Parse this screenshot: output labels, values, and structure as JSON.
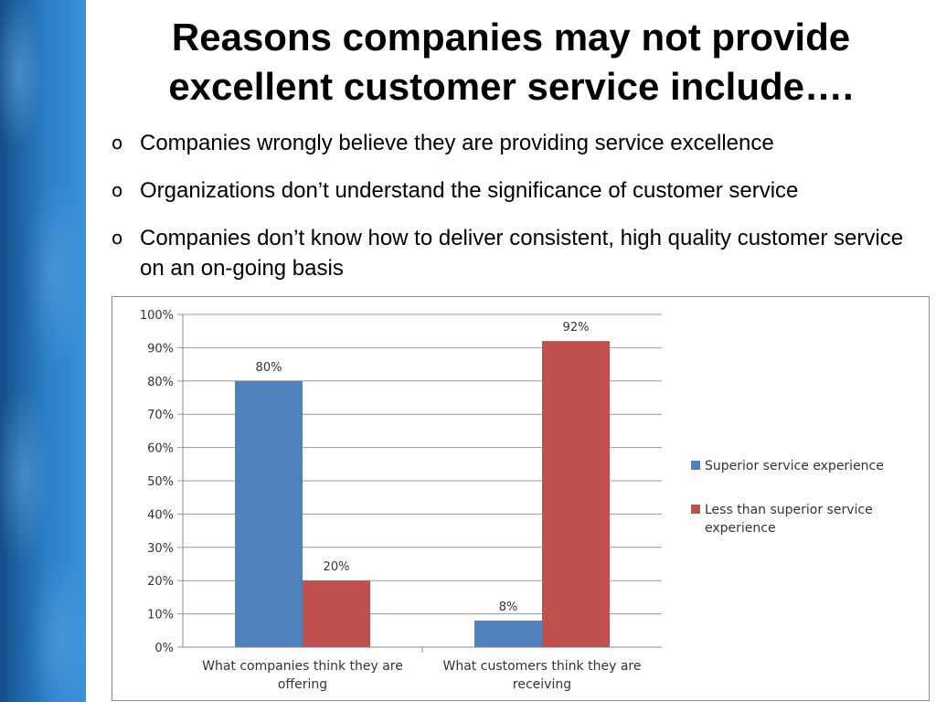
{
  "slide": {
    "title_line1": "Reasons companies may not provide",
    "title_line2": "excellent customer service include….",
    "bullet_symbol": "o",
    "bullets": [
      "Companies wrongly believe they are providing service excellence",
      "Organizations don’t understand the significance of customer service",
      "Companies don’t know how to deliver consistent, high quality customer service on an on-going basis"
    ]
  },
  "chart_data": {
    "type": "bar",
    "categories": [
      [
        "What companies think they are",
        "offering"
      ],
      [
        "What customers think they are",
        "receiving"
      ]
    ],
    "series": [
      {
        "name": "Superior service experience",
        "values": [
          80,
          8
        ],
        "labels": [
          "80%",
          "8%"
        ],
        "color": "#4f81bd"
      },
      {
        "name": "Less than superior service experience",
        "values": [
          20,
          92
        ],
        "labels": [
          "20%",
          "92%"
        ],
        "color": "#c0504d"
      }
    ],
    "legend_lines": [
      [
        "Superior service experience"
      ],
      [
        "Less than superior service",
        "experience"
      ]
    ],
    "ylim": [
      0,
      100
    ],
    "yticks": [
      "0%",
      "10%",
      "20%",
      "30%",
      "40%",
      "50%",
      "60%",
      "70%",
      "80%",
      "90%",
      "100%"
    ],
    "grid": true,
    "legend_position": "right"
  }
}
